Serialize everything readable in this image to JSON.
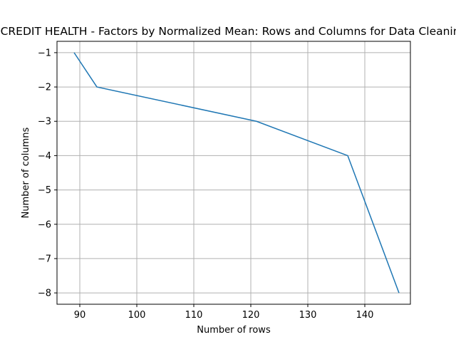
{
  "chart_data": {
    "type": "line",
    "title": "CREDIT HEALTH - Factors by Normalized Mean: Rows and Columns for Data Cleaning",
    "xlabel": "Number of rows",
    "ylabel": "Number of columns",
    "xlim": [
      86,
      148
    ],
    "ylim": [
      -8.33,
      -0.67
    ],
    "xticks": [
      90,
      100,
      110,
      120,
      130,
      140
    ],
    "yticks": [
      -1,
      -2,
      -3,
      -4,
      -5,
      -6,
      -7,
      -8
    ],
    "xtick_labels": [
      "90",
      "100",
      "110",
      "120",
      "130",
      "140"
    ],
    "ytick_labels": [
      "−1",
      "−2",
      "−3",
      "−4",
      "−5",
      "−6",
      "−7",
      "−8"
    ],
    "grid": true,
    "series": [
      {
        "color": "#1f77b4",
        "x": [
          89,
          93,
          121,
          137,
          146
        ],
        "y": [
          -1,
          -2,
          -3,
          -4,
          -8
        ]
      }
    ]
  }
}
